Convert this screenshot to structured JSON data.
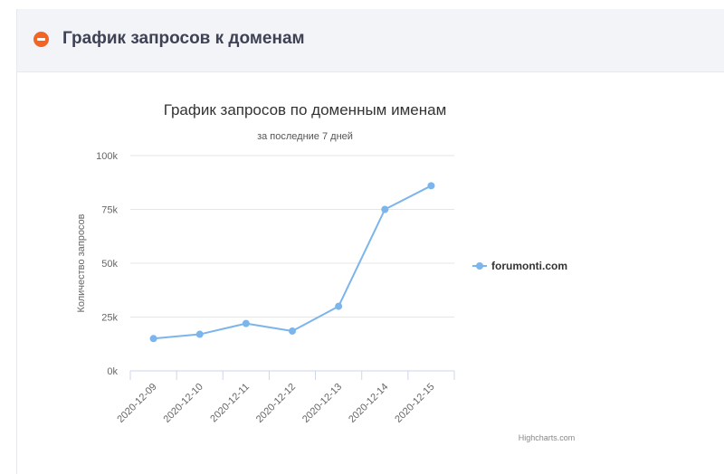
{
  "header": {
    "title": "График запросов к доменам",
    "collapse_icon": "minus-circle-icon",
    "accent_color": "#f26522"
  },
  "credits": "Highcharts.com",
  "chart_data": {
    "type": "line",
    "title": "График запросов по доменным именам",
    "subtitle": "за последние 7 дней",
    "xlabel": "",
    "ylabel": "Количество запросов",
    "categories": [
      "2020-12-09",
      "2020-12-10",
      "2020-12-11",
      "2020-12-12",
      "2020-12-13",
      "2020-12-14",
      "2020-12-15"
    ],
    "ylim": [
      0,
      100000
    ],
    "yticks": [
      0,
      25000,
      50000,
      75000,
      100000
    ],
    "ytick_labels": [
      "0k",
      "25k",
      "50k",
      "75k",
      "100k"
    ],
    "grid": true,
    "legend_position": "right",
    "series": [
      {
        "name": "forumonti.com",
        "color": "#7cb5ec",
        "values": [
          15000,
          17000,
          22000,
          18500,
          30000,
          75000,
          86000
        ]
      }
    ]
  }
}
